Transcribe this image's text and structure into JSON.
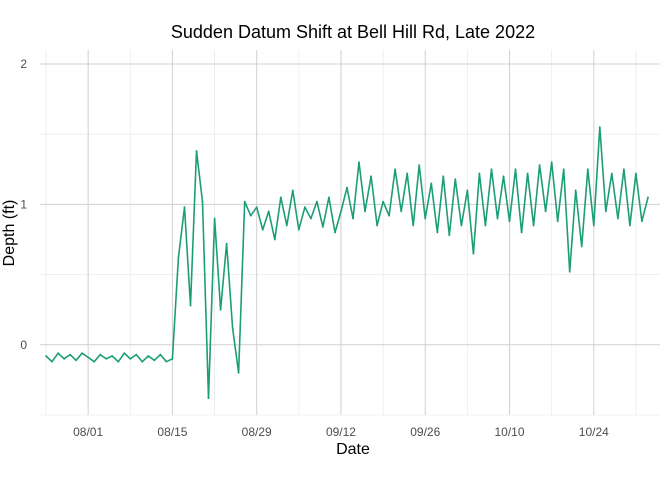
{
  "chart_data": {
    "type": "line",
    "title": "Sudden Datum Shift at Bell Hill Rd, Late 2022",
    "xlabel": "Date",
    "ylabel": "Depth (ft)",
    "x_range": [
      "2022-07-24",
      "2022-11-04"
    ],
    "ylim": [
      -0.5,
      2.1
    ],
    "x_ticks": [
      {
        "date": "2022-08-01",
        "label": "08/01"
      },
      {
        "date": "2022-08-15",
        "label": "08/15"
      },
      {
        "date": "2022-08-29",
        "label": "08/29"
      },
      {
        "date": "2022-09-12",
        "label": "09/12"
      },
      {
        "date": "2022-09-26",
        "label": "09/26"
      },
      {
        "date": "2022-10-10",
        "label": "10/10"
      },
      {
        "date": "2022-10-24",
        "label": "10/24"
      }
    ],
    "y_ticks": [
      {
        "value": 0,
        "label": "0"
      },
      {
        "value": 1,
        "label": "1"
      },
      {
        "value": 2,
        "label": "2"
      }
    ],
    "grid": true,
    "legend": "none",
    "series": [
      {
        "color": "#1b9e77",
        "x": [
          "2022-07-25",
          "2022-07-26",
          "2022-07-27",
          "2022-07-28",
          "2022-07-29",
          "2022-07-30",
          "2022-07-31",
          "2022-08-01",
          "2022-08-02",
          "2022-08-03",
          "2022-08-04",
          "2022-08-05",
          "2022-08-06",
          "2022-08-07",
          "2022-08-08",
          "2022-08-09",
          "2022-08-10",
          "2022-08-11",
          "2022-08-12",
          "2022-08-13",
          "2022-08-14",
          "2022-08-15",
          "2022-08-16",
          "2022-08-17",
          "2022-08-18",
          "2022-08-19",
          "2022-08-20",
          "2022-08-21",
          "2022-08-22",
          "2022-08-23",
          "2022-08-24",
          "2022-08-25",
          "2022-08-26",
          "2022-08-27",
          "2022-08-28",
          "2022-08-29",
          "2022-08-30",
          "2022-08-31",
          "2022-09-01",
          "2022-09-02",
          "2022-09-03",
          "2022-09-04",
          "2022-09-05",
          "2022-09-06",
          "2022-09-07",
          "2022-09-08",
          "2022-09-09",
          "2022-09-10",
          "2022-09-11",
          "2022-09-12",
          "2022-09-13",
          "2022-09-14",
          "2022-09-15",
          "2022-09-16",
          "2022-09-17",
          "2022-09-18",
          "2022-09-19",
          "2022-09-20",
          "2022-09-21",
          "2022-09-22",
          "2022-09-23",
          "2022-09-24",
          "2022-09-25",
          "2022-09-26",
          "2022-09-27",
          "2022-09-28",
          "2022-09-29",
          "2022-09-30",
          "2022-10-01",
          "2022-10-02",
          "2022-10-03",
          "2022-10-04",
          "2022-10-05",
          "2022-10-06",
          "2022-10-07",
          "2022-10-08",
          "2022-10-09",
          "2022-10-10",
          "2022-10-11",
          "2022-10-12",
          "2022-10-13",
          "2022-10-14",
          "2022-10-15",
          "2022-10-16",
          "2022-10-17",
          "2022-10-18",
          "2022-10-19",
          "2022-10-20",
          "2022-10-21",
          "2022-10-22",
          "2022-10-23",
          "2022-10-24",
          "2022-10-25",
          "2022-10-26",
          "2022-10-27",
          "2022-10-28",
          "2022-10-29",
          "2022-10-30",
          "2022-10-31",
          "2022-11-01",
          "2022-11-02"
        ],
        "y": [
          -0.08,
          -0.12,
          -0.06,
          -0.1,
          -0.07,
          -0.11,
          -0.06,
          -0.09,
          -0.12,
          -0.07,
          -0.1,
          -0.08,
          -0.12,
          -0.06,
          -0.1,
          -0.07,
          -0.12,
          -0.08,
          -0.11,
          -0.07,
          -0.12,
          -0.1,
          0.62,
          0.98,
          0.28,
          1.38,
          1.02,
          -0.38,
          0.9,
          0.25,
          0.72,
          0.12,
          -0.2,
          1.02,
          0.92,
          0.98,
          0.82,
          0.95,
          0.75,
          1.05,
          0.85,
          1.1,
          0.82,
          0.98,
          0.9,
          1.02,
          0.84,
          1.05,
          0.8,
          0.95,
          1.12,
          0.9,
          1.3,
          0.95,
          1.2,
          0.85,
          1.02,
          0.92,
          1.25,
          0.95,
          1.22,
          0.85,
          1.28,
          0.9,
          1.15,
          0.8,
          1.2,
          0.78,
          1.18,
          0.85,
          1.1,
          0.65,
          1.22,
          0.85,
          1.25,
          0.9,
          1.2,
          0.88,
          1.25,
          0.8,
          1.22,
          0.85,
          1.28,
          0.95,
          1.3,
          0.88,
          1.25,
          0.52,
          1.1,
          0.7,
          1.25,
          0.85,
          1.55,
          0.95,
          1.22,
          0.9,
          1.25,
          0.85,
          1.22,
          0.88,
          1.05
        ]
      }
    ]
  }
}
